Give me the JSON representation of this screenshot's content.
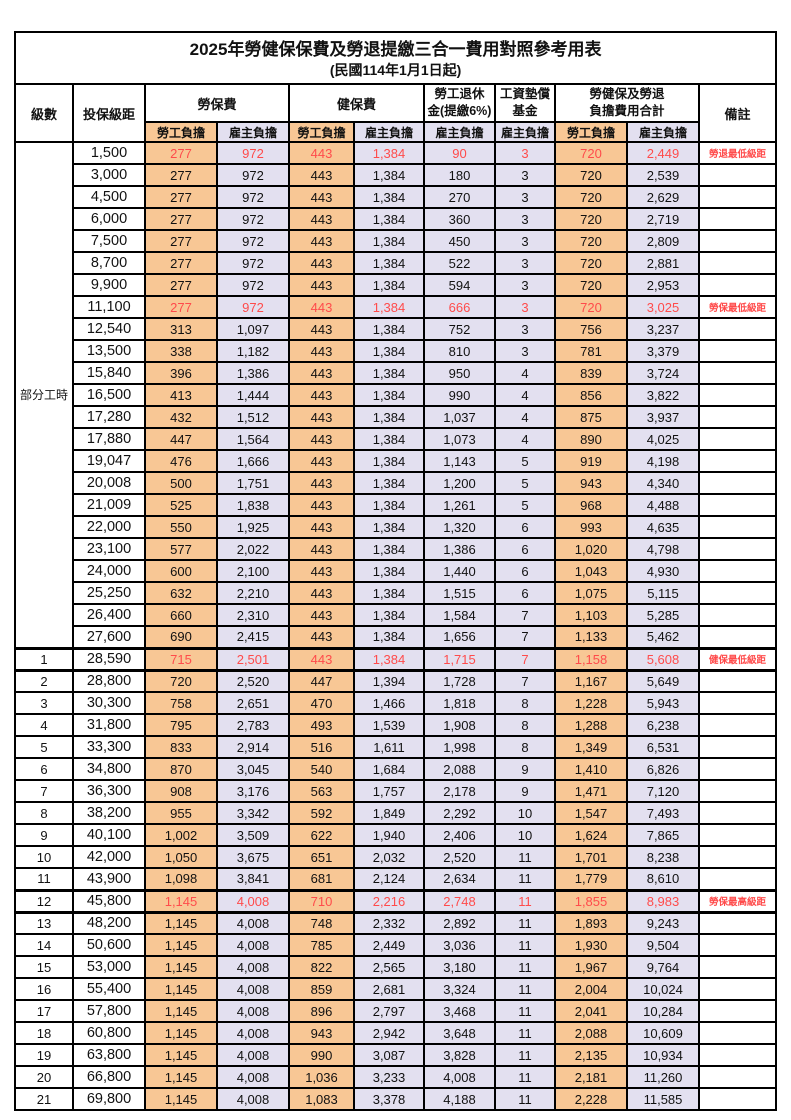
{
  "title": "2025年勞健保保費及勞退提繳三合一費用對照參考用表",
  "subtitle": "(民國114年1月1日起)",
  "colors": {
    "employee_bg": "#F8C795",
    "employer_bg": "#E3E0F0",
    "highlight_text": "#FF4B4B",
    "border": "#000000"
  },
  "columns": {
    "level": "級數",
    "bracket": "投保級距",
    "labor_ins": "勞保費",
    "health_ins": "健保費",
    "pension_l1": "勞工退休",
    "pension_l2": "金(提繳6%)",
    "fund_l1": "工資墊償",
    "fund_l2": "基金",
    "total_l1": "勞健保及勞退",
    "total_l2": "負擔費用合計",
    "remark": "備註",
    "employee": "勞工負擔",
    "employer": "雇主負擔"
  },
  "part_time": {
    "label": "部分工時",
    "rowspan": 23
  },
  "rows": [
    {
      "level": "",
      "bracket": "1,500",
      "values": [
        "277",
        "972",
        "443",
        "1,384",
        "90",
        "3",
        "720",
        "2,449"
      ],
      "remark": "勞退最低級距",
      "red": true,
      "hl": false
    },
    {
      "level": "",
      "bracket": "3,000",
      "values": [
        "277",
        "972",
        "443",
        "1,384",
        "180",
        "3",
        "720",
        "2,539"
      ],
      "remark": "",
      "red": false,
      "hl": false
    },
    {
      "level": "",
      "bracket": "4,500",
      "values": [
        "277",
        "972",
        "443",
        "1,384",
        "270",
        "3",
        "720",
        "2,629"
      ],
      "remark": "",
      "red": false,
      "hl": false
    },
    {
      "level": "",
      "bracket": "6,000",
      "values": [
        "277",
        "972",
        "443",
        "1,384",
        "360",
        "3",
        "720",
        "2,719"
      ],
      "remark": "",
      "red": false,
      "hl": false
    },
    {
      "level": "",
      "bracket": "7,500",
      "values": [
        "277",
        "972",
        "443",
        "1,384",
        "450",
        "3",
        "720",
        "2,809"
      ],
      "remark": "",
      "red": false,
      "hl": false
    },
    {
      "level": "",
      "bracket": "8,700",
      "values": [
        "277",
        "972",
        "443",
        "1,384",
        "522",
        "3",
        "720",
        "2,881"
      ],
      "remark": "",
      "red": false,
      "hl": false
    },
    {
      "level": "",
      "bracket": "9,900",
      "values": [
        "277",
        "972",
        "443",
        "1,384",
        "594",
        "3",
        "720",
        "2,953"
      ],
      "remark": "",
      "red": false,
      "hl": false
    },
    {
      "level": "",
      "bracket": "11,100",
      "values": [
        "277",
        "972",
        "443",
        "1,384",
        "666",
        "3",
        "720",
        "3,025"
      ],
      "remark": "勞保最低級距",
      "red": true,
      "hl": false
    },
    {
      "level": "",
      "bracket": "12,540",
      "values": [
        "313",
        "1,097",
        "443",
        "1,384",
        "752",
        "3",
        "756",
        "3,237"
      ],
      "remark": "",
      "red": false,
      "hl": false
    },
    {
      "level": "",
      "bracket": "13,500",
      "values": [
        "338",
        "1,182",
        "443",
        "1,384",
        "810",
        "3",
        "781",
        "3,379"
      ],
      "remark": "",
      "red": false,
      "hl": false
    },
    {
      "level": "",
      "bracket": "15,840",
      "values": [
        "396",
        "1,386",
        "443",
        "1,384",
        "950",
        "4",
        "839",
        "3,724"
      ],
      "remark": "",
      "red": false,
      "hl": false
    },
    {
      "level": "",
      "bracket": "16,500",
      "values": [
        "413",
        "1,444",
        "443",
        "1,384",
        "990",
        "4",
        "856",
        "3,822"
      ],
      "remark": "",
      "red": false,
      "hl": false
    },
    {
      "level": "",
      "bracket": "17,280",
      "values": [
        "432",
        "1,512",
        "443",
        "1,384",
        "1,037",
        "4",
        "875",
        "3,937"
      ],
      "remark": "",
      "red": false,
      "hl": false
    },
    {
      "level": "",
      "bracket": "17,880",
      "values": [
        "447",
        "1,564",
        "443",
        "1,384",
        "1,073",
        "4",
        "890",
        "4,025"
      ],
      "remark": "",
      "red": false,
      "hl": false
    },
    {
      "level": "",
      "bracket": "19,047",
      "values": [
        "476",
        "1,666",
        "443",
        "1,384",
        "1,143",
        "5",
        "919",
        "4,198"
      ],
      "remark": "",
      "red": false,
      "hl": false
    },
    {
      "level": "",
      "bracket": "20,008",
      "values": [
        "500",
        "1,751",
        "443",
        "1,384",
        "1,200",
        "5",
        "943",
        "4,340"
      ],
      "remark": "",
      "red": false,
      "hl": false
    },
    {
      "level": "",
      "bracket": "21,009",
      "values": [
        "525",
        "1,838",
        "443",
        "1,384",
        "1,261",
        "5",
        "968",
        "4,488"
      ],
      "remark": "",
      "red": false,
      "hl": false
    },
    {
      "level": "",
      "bracket": "22,000",
      "values": [
        "550",
        "1,925",
        "443",
        "1,384",
        "1,320",
        "6",
        "993",
        "4,635"
      ],
      "remark": "",
      "red": false,
      "hl": false
    },
    {
      "level": "",
      "bracket": "23,100",
      "values": [
        "577",
        "2,022",
        "443",
        "1,384",
        "1,386",
        "6",
        "1,020",
        "4,798"
      ],
      "remark": "",
      "red": false,
      "hl": false
    },
    {
      "level": "",
      "bracket": "24,000",
      "values": [
        "600",
        "2,100",
        "443",
        "1,384",
        "1,440",
        "6",
        "1,043",
        "4,930"
      ],
      "remark": "",
      "red": false,
      "hl": false
    },
    {
      "level": "",
      "bracket": "25,250",
      "values": [
        "632",
        "2,210",
        "443",
        "1,384",
        "1,515",
        "6",
        "1,075",
        "5,115"
      ],
      "remark": "",
      "red": false,
      "hl": false
    },
    {
      "level": "",
      "bracket": "26,400",
      "values": [
        "660",
        "2,310",
        "443",
        "1,384",
        "1,584",
        "7",
        "1,103",
        "5,285"
      ],
      "remark": "",
      "red": false,
      "hl": false
    },
    {
      "level": "",
      "bracket": "27,600",
      "values": [
        "690",
        "2,415",
        "443",
        "1,384",
        "1,656",
        "7",
        "1,133",
        "5,462"
      ],
      "remark": "",
      "red": false,
      "hl": false
    },
    {
      "level": "1",
      "bracket": "28,590",
      "values": [
        "715",
        "2,501",
        "443",
        "1,384",
        "1,715",
        "7",
        "1,158",
        "5,608"
      ],
      "remark": "健保最低級距",
      "red": true,
      "hl": true
    },
    {
      "level": "2",
      "bracket": "28,800",
      "values": [
        "720",
        "2,520",
        "447",
        "1,394",
        "1,728",
        "7",
        "1,167",
        "5,649"
      ],
      "remark": "",
      "red": false,
      "hl": false
    },
    {
      "level": "3",
      "bracket": "30,300",
      "values": [
        "758",
        "2,651",
        "470",
        "1,466",
        "1,818",
        "8",
        "1,228",
        "5,943"
      ],
      "remark": "",
      "red": false,
      "hl": false
    },
    {
      "level": "4",
      "bracket": "31,800",
      "values": [
        "795",
        "2,783",
        "493",
        "1,539",
        "1,908",
        "8",
        "1,288",
        "6,238"
      ],
      "remark": "",
      "red": false,
      "hl": false
    },
    {
      "level": "5",
      "bracket": "33,300",
      "values": [
        "833",
        "2,914",
        "516",
        "1,611",
        "1,998",
        "8",
        "1,349",
        "6,531"
      ],
      "remark": "",
      "red": false,
      "hl": false
    },
    {
      "level": "6",
      "bracket": "34,800",
      "values": [
        "870",
        "3,045",
        "540",
        "1,684",
        "2,088",
        "9",
        "1,410",
        "6,826"
      ],
      "remark": "",
      "red": false,
      "hl": false
    },
    {
      "level": "7",
      "bracket": "36,300",
      "values": [
        "908",
        "3,176",
        "563",
        "1,757",
        "2,178",
        "9",
        "1,471",
        "7,120"
      ],
      "remark": "",
      "red": false,
      "hl": false
    },
    {
      "level": "8",
      "bracket": "38,200",
      "values": [
        "955",
        "3,342",
        "592",
        "1,849",
        "2,292",
        "10",
        "1,547",
        "7,493"
      ],
      "remark": "",
      "red": false,
      "hl": false
    },
    {
      "level": "9",
      "bracket": "40,100",
      "values": [
        "1,002",
        "3,509",
        "622",
        "1,940",
        "2,406",
        "10",
        "1,624",
        "7,865"
      ],
      "remark": "",
      "red": false,
      "hl": false
    },
    {
      "level": "10",
      "bracket": "42,000",
      "values": [
        "1,050",
        "3,675",
        "651",
        "2,032",
        "2,520",
        "11",
        "1,701",
        "8,238"
      ],
      "remark": "",
      "red": false,
      "hl": false
    },
    {
      "level": "11",
      "bracket": "43,900",
      "values": [
        "1,098",
        "3,841",
        "681",
        "2,124",
        "2,634",
        "11",
        "1,779",
        "8,610"
      ],
      "remark": "",
      "red": false,
      "hl": false
    },
    {
      "level": "12",
      "bracket": "45,800",
      "values": [
        "1,145",
        "4,008",
        "710",
        "2,216",
        "2,748",
        "11",
        "1,855",
        "8,983"
      ],
      "remark": "勞保最高級距",
      "red": true,
      "hl": true
    },
    {
      "level": "13",
      "bracket": "48,200",
      "values": [
        "1,145",
        "4,008",
        "748",
        "2,332",
        "2,892",
        "11",
        "1,893",
        "9,243"
      ],
      "remark": "",
      "red": false,
      "hl": false
    },
    {
      "level": "14",
      "bracket": "50,600",
      "values": [
        "1,145",
        "4,008",
        "785",
        "2,449",
        "3,036",
        "11",
        "1,930",
        "9,504"
      ],
      "remark": "",
      "red": false,
      "hl": false
    },
    {
      "level": "15",
      "bracket": "53,000",
      "values": [
        "1,145",
        "4,008",
        "822",
        "2,565",
        "3,180",
        "11",
        "1,967",
        "9,764"
      ],
      "remark": "",
      "red": false,
      "hl": false
    },
    {
      "level": "16",
      "bracket": "55,400",
      "values": [
        "1,145",
        "4,008",
        "859",
        "2,681",
        "3,324",
        "11",
        "2,004",
        "10,024"
      ],
      "remark": "",
      "red": false,
      "hl": false
    },
    {
      "level": "17",
      "bracket": "57,800",
      "values": [
        "1,145",
        "4,008",
        "896",
        "2,797",
        "3,468",
        "11",
        "2,041",
        "10,284"
      ],
      "remark": "",
      "red": false,
      "hl": false
    },
    {
      "level": "18",
      "bracket": "60,800",
      "values": [
        "1,145",
        "4,008",
        "943",
        "2,942",
        "3,648",
        "11",
        "2,088",
        "10,609"
      ],
      "remark": "",
      "red": false,
      "hl": false
    },
    {
      "level": "19",
      "bracket": "63,800",
      "values": [
        "1,145",
        "4,008",
        "990",
        "3,087",
        "3,828",
        "11",
        "2,135",
        "10,934"
      ],
      "remark": "",
      "red": false,
      "hl": false
    },
    {
      "level": "20",
      "bracket": "66,800",
      "values": [
        "1,145",
        "4,008",
        "1,036",
        "3,233",
        "4,008",
        "11",
        "2,181",
        "11,260"
      ],
      "remark": "",
      "red": false,
      "hl": false
    },
    {
      "level": "21",
      "bracket": "69,800",
      "values": [
        "1,145",
        "4,008",
        "1,083",
        "3,378",
        "4,188",
        "11",
        "2,228",
        "11,585"
      ],
      "remark": "",
      "red": false,
      "hl": false
    }
  ]
}
